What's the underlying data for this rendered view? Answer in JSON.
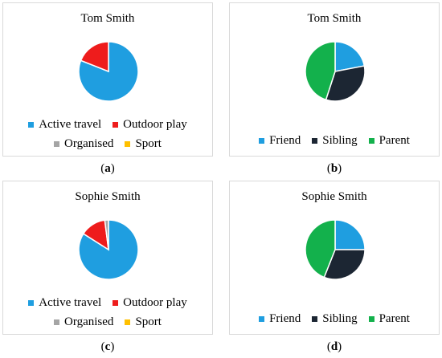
{
  "chart_data": [
    {
      "type": "pie",
      "title": "Tom Smith",
      "caption_letter": "a",
      "categories": [
        "Active travel",
        "Outdoor play",
        "Organised",
        "Sport"
      ],
      "values": [
        81,
        19,
        0,
        0
      ],
      "colors": [
        "#1f9ee0",
        "#ee1c1c",
        "#a5a5a5",
        "#ffc000"
      ],
      "legend_rows": [
        [
          "Active travel",
          "Outdoor play"
        ],
        [
          "Organised",
          "Sport"
        ]
      ]
    },
    {
      "type": "pie",
      "title": "Tom Smith",
      "caption_letter": "b",
      "categories": [
        "Friend",
        "Sibling",
        "Parent"
      ],
      "values": [
        22,
        33,
        45
      ],
      "colors": [
        "#1f9ee0",
        "#1c2633",
        "#13b14c"
      ],
      "legend_rows": [
        [
          "Friend",
          "Sibling",
          "Parent"
        ]
      ]
    },
    {
      "type": "pie",
      "title": "Sophie Smith",
      "caption_letter": "c",
      "categories": [
        "Active travel",
        "Outdoor play",
        "Organised",
        "Sport"
      ],
      "values": [
        84,
        14,
        2,
        0
      ],
      "colors": [
        "#1f9ee0",
        "#ee1c1c",
        "#a5a5a5",
        "#ffc000"
      ],
      "legend_rows": [
        [
          "Active travel",
          "Outdoor play"
        ],
        [
          "Organised",
          "Sport"
        ]
      ]
    },
    {
      "type": "pie",
      "title": "Sophie Smith",
      "caption_letter": "d",
      "categories": [
        "Friend",
        "Sibling",
        "Parent"
      ],
      "values": [
        25,
        31,
        44
      ],
      "colors": [
        "#1f9ee0",
        "#1c2633",
        "#13b14c"
      ],
      "legend_rows": [
        [
          "Friend",
          "Sibling",
          "Parent"
        ]
      ]
    }
  ]
}
